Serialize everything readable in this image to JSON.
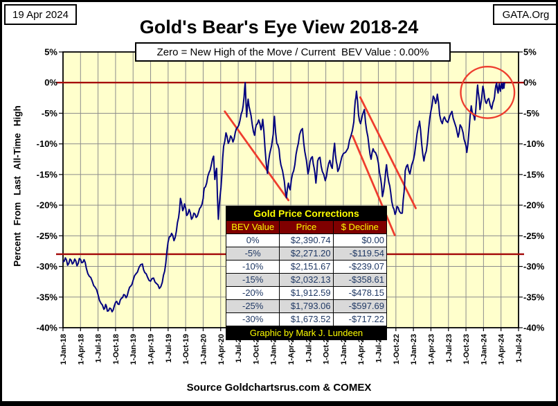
{
  "header": {
    "date": "19 Apr 2024",
    "org": "GATA.Org",
    "title": "Gold's Bear's Eye View 2018-24",
    "subtitle": "Zero = New High of the Move / Current  BEV Value : 0.00%"
  },
  "source": "Source Goldchartsrus.com & COMEX",
  "axes": {
    "y_label": "Percent From Last All-Time High",
    "y_ticks": [
      "5%",
      "0%",
      "-5%",
      "-10%",
      "-15%",
      "-20%",
      "-25%",
      "-30%",
      "-35%",
      "-40%"
    ],
    "x_ticks": [
      "1-Jan-18",
      "1-Apr-18",
      "1-Jul-18",
      "1-Oct-18",
      "1-Jan-19",
      "1-Apr-19",
      "1-Jul-19",
      "1-Oct-19",
      "1-Jan-20",
      "1-Apr-20",
      "1-Jul-20",
      "1-Oct-20",
      "1-Jan-21",
      "1-Apr-21",
      "1-Jul-21",
      "1-Oct-21",
      "1-Jan-22",
      "1-Apr-22",
      "1-Jul-22",
      "1-Oct-22",
      "1-Jan-23",
      "1-Apr-23",
      "1-Jul-23",
      "1-Oct-23",
      "1-Jan-24",
      "1-Apr-24",
      "1-Jul-24"
    ]
  },
  "table": {
    "title": "Gold Price Corrections",
    "columns": [
      "BEV Value",
      "Price",
      "$ Decline"
    ],
    "rows": [
      [
        "0%",
        "$2,390.74",
        "$0.00"
      ],
      [
        "-5%",
        "$2,271.20",
        "-$119.54"
      ],
      [
        "-10%",
        "$2,151.67",
        "-$239.07"
      ],
      [
        "-15%",
        "$2,032.13",
        "-$358.61"
      ],
      [
        "-20%",
        "$1,912.59",
        "-$478.15"
      ],
      [
        "-25%",
        "$1,793.06",
        "-$597.69"
      ],
      [
        "-30%",
        "$1,673.52",
        "-$717.22"
      ]
    ],
    "footer": "Graphic by Mark J. Lundeen"
  },
  "colors": {
    "plot_bg": "#FFFFCC",
    "grid": "#8C8C8C",
    "bev_line": "#00007E",
    "dark_red": "#A50D0D",
    "bright_red": "#EE3D2E",
    "table_title_bg": "#000000",
    "table_header_bg": "#7F0000",
    "table_yellow": "#FFFF00",
    "row_alt": "#D9D9D9",
    "cell_text": "#1F3864"
  },
  "chart_data": {
    "type": "line",
    "title": "Gold's Bear's Eye View 2018-24",
    "xlabel": "",
    "ylabel": "Percent From Last All-Time High",
    "x_unit": "months since 1-Jan-2018",
    "x_range": [
      0,
      78
    ],
    "y_range": [
      -40,
      5
    ],
    "y_tick_step_pct": 5,
    "x_tick_step_months": 3,
    "grid": true,
    "current_bev": "0.00%",
    "hlines": [
      0,
      -28
    ],
    "trendlines": [
      [
        [
          27.7,
          -4.7
        ],
        [
          38.6,
          -19.2
        ]
      ],
      [
        [
          50.9,
          -2.4
        ],
        [
          60.4,
          -20.5
        ]
      ],
      [
        [
          49.6,
          -8.7
        ],
        [
          56.8,
          -24.9
        ]
      ]
    ],
    "highlight_ellipse": {
      "x": 72.7,
      "y": -1.6,
      "rx_months": 4.6,
      "ry_pct": 4.2
    },
    "series": [
      {
        "name": "Gold BEV — percent from last all-time high",
        "points": [
          [
            0,
            -29.3
          ],
          [
            0.4,
            -28.6
          ],
          [
            0.8,
            -29.8
          ],
          [
            1.2,
            -28.8
          ],
          [
            1.6,
            -29.6
          ],
          [
            2,
            -28.8
          ],
          [
            2.4,
            -29.9
          ],
          [
            2.8,
            -28.7
          ],
          [
            3.2,
            -29.4
          ],
          [
            3.6,
            -28.9
          ],
          [
            4,
            -30.3
          ],
          [
            4.5,
            -31.6
          ],
          [
            5,
            -32.4
          ],
          [
            5.5,
            -33.4
          ],
          [
            6,
            -34.6
          ],
          [
            6.5,
            -36
          ],
          [
            7,
            -37
          ],
          [
            7.3,
            -36.2
          ],
          [
            7.6,
            -37.3
          ],
          [
            8,
            -36.8
          ],
          [
            8.4,
            -37.4
          ],
          [
            8.8,
            -36.4
          ],
          [
            9.2,
            -35.7
          ],
          [
            9.6,
            -36.2
          ],
          [
            10,
            -35.2
          ],
          [
            10.4,
            -34.6
          ],
          [
            10.8,
            -35.1
          ],
          [
            11.2,
            -34
          ],
          [
            11.6,
            -33.2
          ],
          [
            12,
            -32.3
          ],
          [
            12.5,
            -31.2
          ],
          [
            13,
            -30.2
          ],
          [
            13.6,
            -29.6
          ],
          [
            14,
            -31
          ],
          [
            14.5,
            -31.8
          ],
          [
            15,
            -32.4
          ],
          [
            15.5,
            -31.9
          ],
          [
            16,
            -32.8
          ],
          [
            16.5,
            -33.6
          ],
          [
            17,
            -32.6
          ],
          [
            17.4,
            -30.8
          ],
          [
            17.8,
            -27.4
          ],
          [
            18.2,
            -25.2
          ],
          [
            18.6,
            -24.6
          ],
          [
            19,
            -25.8
          ],
          [
            19.4,
            -24.3
          ],
          [
            19.8,
            -22
          ],
          [
            20.1,
            -18.9
          ],
          [
            20.5,
            -20.9
          ],
          [
            20.8,
            -19.8
          ],
          [
            21.2,
            -21.7
          ],
          [
            21.6,
            -20.7
          ],
          [
            22,
            -22.3
          ],
          [
            22.4,
            -21.3
          ],
          [
            22.8,
            -22
          ],
          [
            23.2,
            -21.2
          ],
          [
            23.6,
            -20.3
          ],
          [
            24,
            -18.9
          ],
          [
            24.2,
            -17.2
          ],
          [
            24.6,
            -16.4
          ],
          [
            25,
            -14.7
          ],
          [
            25.4,
            -13.4
          ],
          [
            25.8,
            -12
          ],
          [
            26,
            -15.8
          ],
          [
            26.3,
            -14
          ],
          [
            26.6,
            -22.3
          ],
          [
            26.9,
            -18.5
          ],
          [
            27.2,
            -15
          ],
          [
            27.5,
            -10.4
          ],
          [
            27.9,
            -8.2
          ],
          [
            28.3,
            -9.9
          ],
          [
            28.7,
            -8.7
          ],
          [
            29.1,
            -9.7
          ],
          [
            29.5,
            -8.1
          ],
          [
            29.9,
            -7.3
          ],
          [
            30.3,
            -6.2
          ],
          [
            30.7,
            -4.6
          ],
          [
            31,
            -2.4
          ],
          [
            31.2,
            0
          ],
          [
            31.45,
            -5.6
          ],
          [
            31.7,
            -2.7
          ],
          [
            32,
            -4.5
          ],
          [
            32.4,
            -6.8
          ],
          [
            32.8,
            -8.6
          ],
          [
            33.1,
            -6.9
          ],
          [
            33.5,
            -6.1
          ],
          [
            33.9,
            -7.7
          ],
          [
            34.2,
            -6
          ],
          [
            34.6,
            -10.9
          ],
          [
            35,
            -14.8
          ],
          [
            35.4,
            -11.6
          ],
          [
            36,
            -8.4
          ],
          [
            36.2,
            -5.5
          ],
          [
            36.6,
            -9.9
          ],
          [
            37,
            -10.9
          ],
          [
            37.3,
            -13.4
          ],
          [
            37.9,
            -16.1
          ],
          [
            38.25,
            -18.8
          ],
          [
            38.6,
            -16.4
          ],
          [
            38.9,
            -17.5
          ],
          [
            39.3,
            -14.9
          ],
          [
            39.7,
            -13.4
          ],
          [
            40.1,
            -10.7
          ],
          [
            40.5,
            -8.5
          ],
          [
            41,
            -7.5
          ],
          [
            41.4,
            -11.2
          ],
          [
            41.95,
            -14.9
          ],
          [
            42.3,
            -12.9
          ],
          [
            42.7,
            -12.1
          ],
          [
            43,
            -13.9
          ],
          [
            43.3,
            -16.4
          ],
          [
            43.6,
            -12.8
          ],
          [
            44,
            -12.2
          ],
          [
            44.4,
            -14.5
          ],
          [
            44.9,
            -16
          ],
          [
            45.3,
            -14.1
          ],
          [
            45.7,
            -12.7
          ],
          [
            46.1,
            -14
          ],
          [
            46.5,
            -9.9
          ],
          [
            46.8,
            -12.9
          ],
          [
            47.05,
            -14.5
          ],
          [
            47.5,
            -13.1
          ],
          [
            48,
            -11.6
          ],
          [
            48.8,
            -10.7
          ],
          [
            49.3,
            -8.7
          ],
          [
            49.8,
            -6.4
          ],
          [
            50.05,
            -2.9
          ],
          [
            50.25,
            -1.4
          ],
          [
            50.6,
            -5.3
          ],
          [
            50.95,
            -6.7
          ],
          [
            51.6,
            -4.4
          ],
          [
            52,
            -7.9
          ],
          [
            52.4,
            -10.4
          ],
          [
            52.75,
            -12.5
          ],
          [
            53.1,
            -10.8
          ],
          [
            53.5,
            -11.4
          ],
          [
            54,
            -13.1
          ],
          [
            54.4,
            -15.7
          ],
          [
            54.7,
            -18.6
          ],
          [
            55.1,
            -16.1
          ],
          [
            55.4,
            -13.4
          ],
          [
            55.8,
            -16.3
          ],
          [
            56.1,
            -17.9
          ],
          [
            56.5,
            -20.3
          ],
          [
            56.85,
            -21.5
          ],
          [
            57.2,
            -20.2
          ],
          [
            57.6,
            -21
          ],
          [
            58.1,
            -21.3
          ],
          [
            58.4,
            -17.8
          ],
          [
            58.6,
            -14.4
          ],
          [
            59,
            -13.4
          ],
          [
            59.4,
            -14.9
          ],
          [
            60,
            -12.6
          ],
          [
            60.4,
            -10.2
          ],
          [
            60.85,
            -7.2
          ],
          [
            61.05,
            -6.3
          ],
          [
            61.4,
            -9.9
          ],
          [
            61.8,
            -12.8
          ],
          [
            62.2,
            -11.2
          ],
          [
            62.6,
            -7.6
          ],
          [
            63,
            -4.6
          ],
          [
            63.4,
            -2.2
          ],
          [
            63.8,
            -3.4
          ],
          [
            64.1,
            -1.9
          ],
          [
            64.5,
            -5.3
          ],
          [
            64.95,
            -6.7
          ],
          [
            65.3,
            -5.6
          ],
          [
            65.9,
            -6.5
          ],
          [
            66.6,
            -4.7
          ],
          [
            67,
            -6.4
          ],
          [
            67.65,
            -8.9
          ],
          [
            68,
            -6.9
          ],
          [
            68.5,
            -8.2
          ],
          [
            68.85,
            -9.8
          ],
          [
            69.15,
            -11.4
          ],
          [
            69.5,
            -8.1
          ],
          [
            69.9,
            -3.8
          ],
          [
            70.2,
            -5.2
          ],
          [
            70.5,
            -6.1
          ],
          [
            70.8,
            -2.8
          ],
          [
            71,
            -0.4
          ],
          [
            71.2,
            -2.2
          ],
          [
            71.4,
            -4.4
          ],
          [
            71.9,
            -0.6
          ],
          [
            72.2,
            -2.5
          ],
          [
            72.5,
            -3.4
          ],
          [
            72.9,
            -2.6
          ],
          [
            73.4,
            -4.3
          ],
          [
            73.8,
            -2.8
          ],
          [
            74,
            -1.2
          ],
          [
            74.25,
            -0.1
          ],
          [
            74.5,
            -1.7
          ],
          [
            74.7,
            -0.2
          ],
          [
            74.9,
            -1.4
          ],
          [
            75.1,
            -0.1
          ],
          [
            75.25,
            -1
          ],
          [
            75.4,
            -0.1
          ],
          [
            75.5,
            -0.9
          ],
          [
            75.63,
            0
          ]
        ]
      }
    ]
  }
}
